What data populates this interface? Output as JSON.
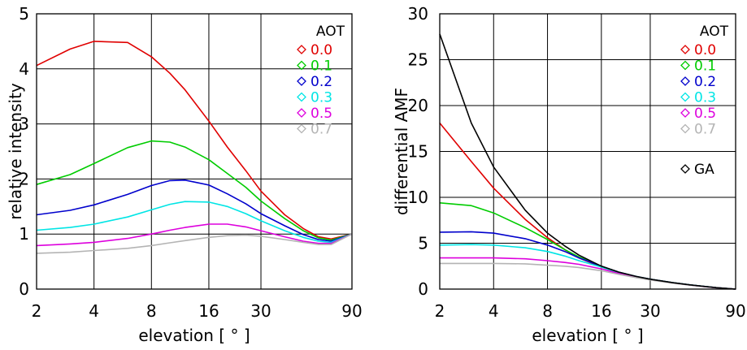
{
  "chart_data": [
    {
      "type": "line",
      "xscale": "log",
      "xlim": [
        2,
        90
      ],
      "ylim": [
        0,
        5
      ],
      "xticks": [
        2,
        4,
        8,
        16,
        30,
        90
      ],
      "xtick_labels": [
        "2",
        "4",
        "8",
        "16",
        "30",
        "90"
      ],
      "yticks": [
        0,
        1,
        2,
        3,
        4,
        5
      ],
      "ytick_labels": [
        "0",
        "1",
        "2",
        "3",
        "4",
        "5"
      ],
      "xlabel": "elevation [ ° ]",
      "ylabel": "relative intensity",
      "grid": true,
      "legend_title": "AOT",
      "legend_position": "top-right",
      "x": [
        2,
        3,
        4,
        6,
        8,
        10,
        12,
        16,
        20,
        25,
        30,
        40,
        50,
        60,
        70,
        90
      ],
      "series": [
        {
          "name": "0.0",
          "color": "#e00000",
          "values": [
            4.06,
            4.36,
            4.5,
            4.48,
            4.22,
            3.92,
            3.62,
            3.05,
            2.58,
            2.15,
            1.78,
            1.35,
            1.1,
            0.95,
            0.91,
            1.0
          ]
        },
        {
          "name": "0.1",
          "color": "#00cc00",
          "values": [
            1.9,
            2.08,
            2.28,
            2.57,
            2.69,
            2.67,
            2.58,
            2.35,
            2.1,
            1.85,
            1.6,
            1.28,
            1.06,
            0.93,
            0.89,
            1.0
          ]
        },
        {
          "name": "0.2",
          "color": "#0000cc",
          "values": [
            1.35,
            1.43,
            1.53,
            1.72,
            1.88,
            1.97,
            1.98,
            1.89,
            1.73,
            1.55,
            1.37,
            1.15,
            0.99,
            0.9,
            0.87,
            1.0
          ]
        },
        {
          "name": "0.3",
          "color": "#00e5e5",
          "values": [
            1.07,
            1.12,
            1.18,
            1.31,
            1.44,
            1.54,
            1.59,
            1.58,
            1.5,
            1.37,
            1.24,
            1.06,
            0.94,
            0.87,
            0.85,
            1.0
          ]
        },
        {
          "name": "0.5",
          "color": "#dd00dd",
          "values": [
            0.79,
            0.82,
            0.85,
            0.92,
            1.0,
            1.07,
            1.12,
            1.18,
            1.18,
            1.13,
            1.06,
            0.95,
            0.87,
            0.83,
            0.83,
            1.0
          ]
        },
        {
          "name": "0.7",
          "color": "#b4b4b4",
          "values": [
            0.65,
            0.67,
            0.7,
            0.74,
            0.79,
            0.84,
            0.88,
            0.94,
            0.97,
            0.98,
            0.96,
            0.9,
            0.85,
            0.81,
            0.81,
            1.0
          ]
        }
      ]
    },
    {
      "type": "line",
      "xscale": "log",
      "xlim": [
        2,
        90
      ],
      "ylim": [
        0,
        30
      ],
      "xticks": [
        2,
        4,
        8,
        16,
        30,
        90
      ],
      "xtick_labels": [
        "2",
        "4",
        "8",
        "16",
        "30",
        "90"
      ],
      "yticks": [
        0,
        5,
        10,
        15,
        20,
        25,
        30
      ],
      "ytick_labels": [
        "0",
        "5",
        "10",
        "15",
        "20",
        "25",
        "30"
      ],
      "xlabel": "elevation [ ° ]",
      "ylabel": "differential AMF",
      "grid": true,
      "legend_title": "AOT",
      "legend_position": "top-right",
      "extra_legend": "GA",
      "x": [
        2,
        3,
        4,
        6,
        8,
        10,
        12,
        16,
        20,
        25,
        30,
        40,
        50,
        60,
        70,
        90
      ],
      "series": [
        {
          "name": "0.0",
          "color": "#e00000",
          "values": [
            18.1,
            13.9,
            11.0,
            7.6,
            5.6,
            4.3,
            3.4,
            2.4,
            1.8,
            1.35,
            1.05,
            0.68,
            0.45,
            0.28,
            0.15,
            0.0
          ]
        },
        {
          "name": "0.1",
          "color": "#00cc00",
          "values": [
            9.4,
            9.1,
            8.3,
            6.7,
            5.4,
            4.3,
            3.5,
            2.5,
            1.85,
            1.38,
            1.08,
            0.7,
            0.46,
            0.29,
            0.16,
            0.0
          ]
        },
        {
          "name": "0.2",
          "color": "#0000cc",
          "values": [
            6.2,
            6.25,
            6.1,
            5.5,
            4.8,
            4.1,
            3.4,
            2.5,
            1.85,
            1.38,
            1.08,
            0.7,
            0.46,
            0.29,
            0.16,
            0.0
          ]
        },
        {
          "name": "0.3",
          "color": "#00e5e5",
          "values": [
            4.8,
            4.85,
            4.8,
            4.5,
            4.1,
            3.6,
            3.1,
            2.4,
            1.8,
            1.35,
            1.05,
            0.68,
            0.45,
            0.28,
            0.15,
            0.0
          ]
        },
        {
          "name": "0.5",
          "color": "#dd00dd",
          "values": [
            3.4,
            3.4,
            3.4,
            3.3,
            3.1,
            2.9,
            2.7,
            2.2,
            1.7,
            1.3,
            1.02,
            0.66,
            0.44,
            0.27,
            0.15,
            0.0
          ]
        },
        {
          "name": "0.7",
          "color": "#b4b4b4",
          "values": [
            2.8,
            2.8,
            2.8,
            2.75,
            2.6,
            2.5,
            2.35,
            2.0,
            1.6,
            1.25,
            1.0,
            0.65,
            0.43,
            0.27,
            0.15,
            0.0
          ]
        },
        {
          "name": "GA",
          "color": "#000000",
          "values": [
            27.8,
            18.1,
            13.3,
            8.6,
            6.1,
            4.7,
            3.7,
            2.5,
            1.85,
            1.38,
            1.08,
            0.7,
            0.46,
            0.29,
            0.16,
            0.0
          ]
        }
      ]
    }
  ]
}
